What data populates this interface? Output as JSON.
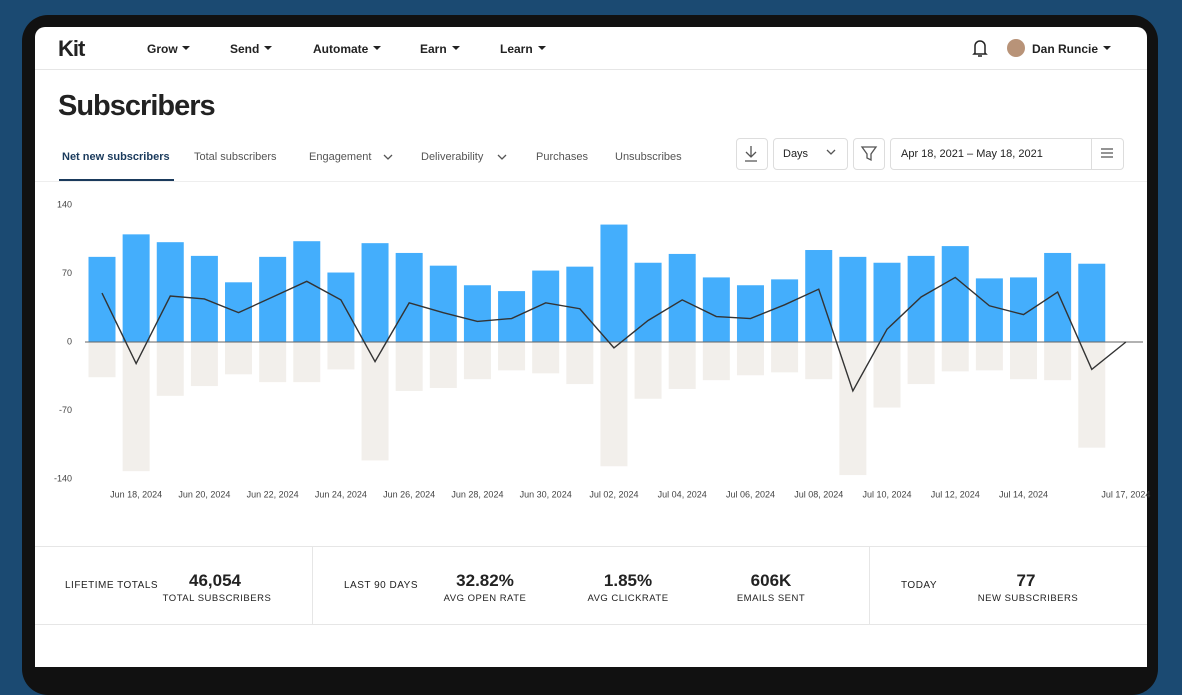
{
  "nav": {
    "logo": "Kit",
    "items": [
      "Grow",
      "Send",
      "Automate",
      "Earn",
      "Learn"
    ],
    "user": "Dan Runcie"
  },
  "page": {
    "title": "Subscribers",
    "tabs": [
      "Net new subscribers",
      "Total subscribers",
      "Engagement",
      "Deliverability",
      "Purchases",
      "Unsubscribes"
    ],
    "period": "Days",
    "date_range": "Apr 18, 2021 – May 18, 2021"
  },
  "chart_data": {
    "type": "bar",
    "categories": [
      null,
      "Jun 18, 2024",
      null,
      "Jun 20, 2024",
      null,
      "Jun 22, 2024",
      null,
      "Jun 24, 2024",
      null,
      "Jun 26, 2024",
      null,
      "Jun 28, 2024",
      null,
      "Jun 30, 2024",
      null,
      "Jul 02, 2024",
      null,
      "Jul 04, 2024",
      null,
      "Jul 06, 2024",
      null,
      "Jul 08, 2024",
      null,
      "Jul 10, 2024",
      null,
      "Jul 12, 2024",
      null,
      "Jul 14, 2024",
      null,
      null,
      "Jul 17, 2024"
    ],
    "series": [
      {
        "color": "#44aefc",
        "values": [
          87,
          110,
          102,
          88,
          61,
          87,
          103,
          71,
          101,
          91,
          78,
          58,
          52,
          73,
          77,
          120,
          81,
          90,
          66,
          58,
          64,
          94,
          87,
          81,
          88,
          98,
          65,
          66,
          91,
          80,
          null
        ]
      },
      {
        "color": "#f2efeb",
        "values": [
          -36,
          -132,
          -55,
          -45,
          -33,
          -41,
          -41,
          -28,
          -121,
          -50,
          -47,
          -38,
          -29,
          -32,
          -43,
          -127,
          -58,
          -48,
          -39,
          -34,
          -31,
          -38,
          -136,
          -67,
          -43,
          -30,
          -29,
          -38,
          -39,
          -108,
          null
        ]
      },
      {
        "type": "line",
        "color": "#333333",
        "values": [
          50,
          -22,
          47,
          44,
          30,
          46,
          62,
          43,
          -20,
          40,
          30,
          21,
          24,
          40,
          34,
          -6,
          22,
          43,
          26,
          24,
          38,
          54,
          -50,
          13,
          46,
          66,
          37,
          28,
          51,
          -28,
          0
        ]
      }
    ],
    "ylim": [
      -140,
      140
    ],
    "yticks": [
      140,
      70,
      0,
      -70,
      -140
    ]
  },
  "stats": {
    "groups": [
      {
        "label": "LIFETIME TOTALS",
        "items": [
          {
            "value": "46,054",
            "label": "TOTAL SUBSCRIBERS"
          }
        ]
      },
      {
        "label": "LAST 90 DAYS",
        "items": [
          {
            "value": "32.82%",
            "label": "AVG OPEN RATE"
          },
          {
            "value": "1.85%",
            "label": "AVG CLICKRATE"
          },
          {
            "value": "606K",
            "label": "EMAILS SENT"
          }
        ]
      },
      {
        "label": "TODAY",
        "items": [
          {
            "value": "77",
            "label": "NEW SUBSCRIBERS"
          }
        ]
      }
    ]
  }
}
